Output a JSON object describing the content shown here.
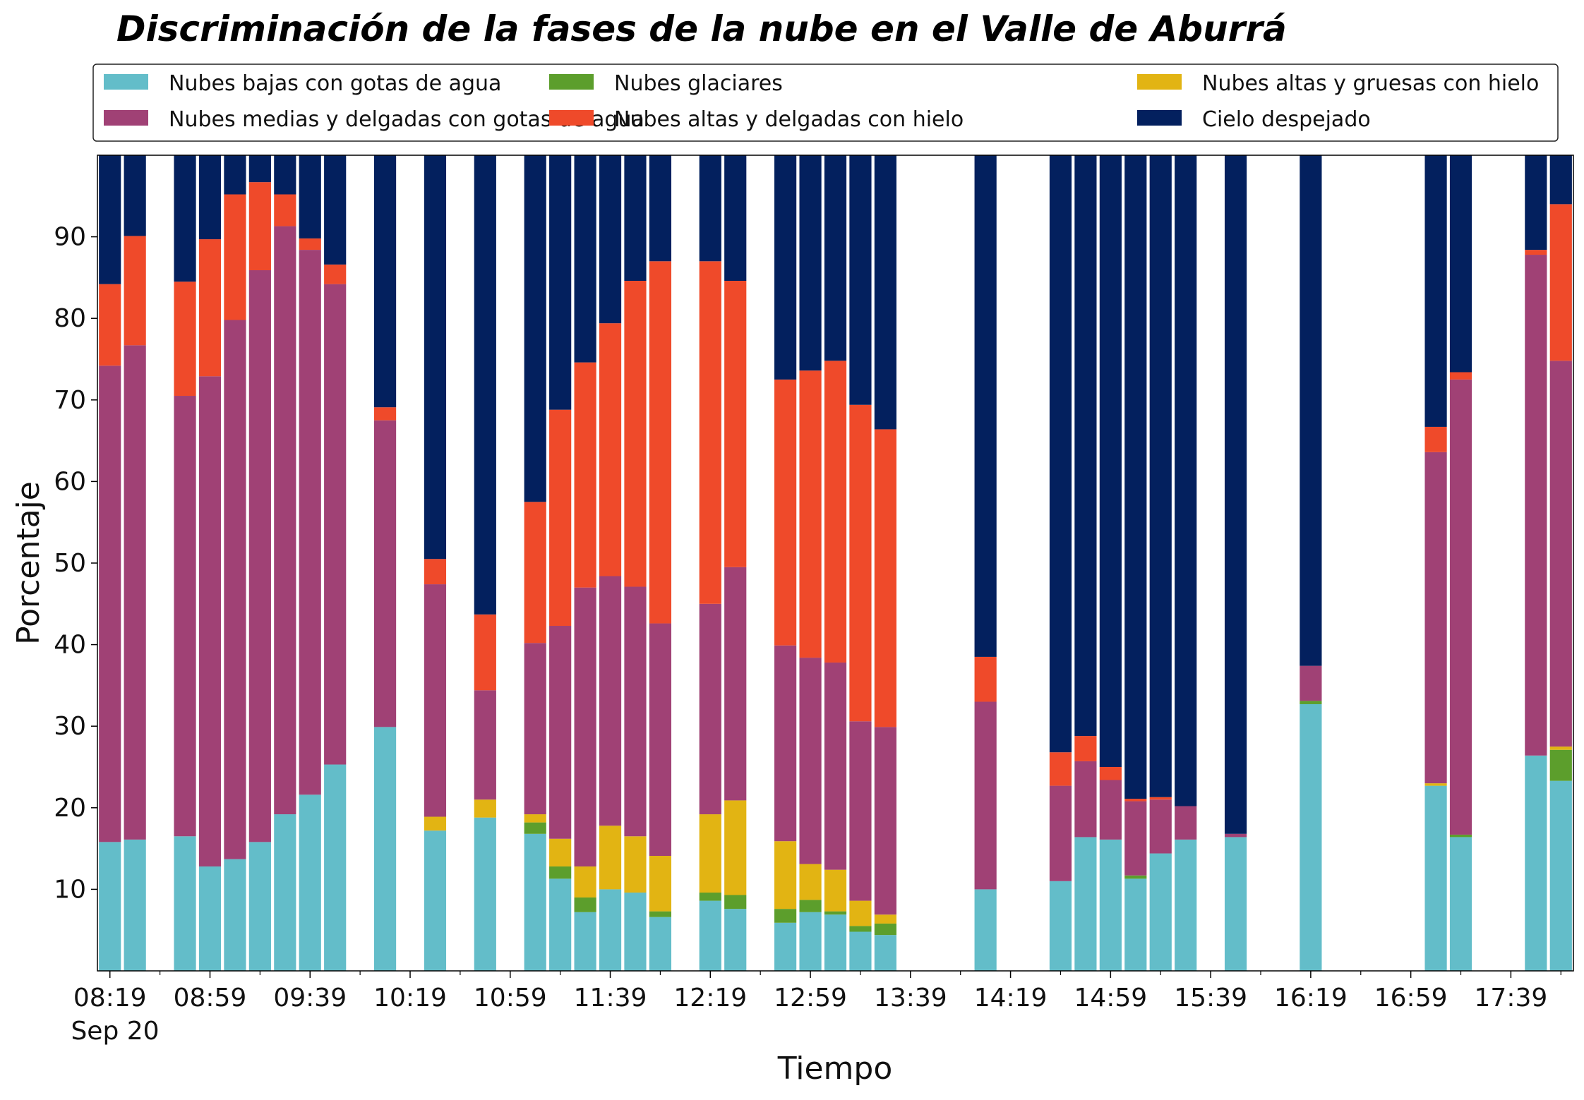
{
  "chart_data": {
    "type": "bar",
    "stacked": true,
    "title": "Discriminación de la fases de la nube en el Valle de Aburrá",
    "xlabel": "Tiempo",
    "ylabel": "Porcentaje",
    "ylim": [
      0,
      100
    ],
    "yticks": [
      10,
      20,
      30,
      40,
      50,
      60,
      70,
      80,
      90
    ],
    "xlim_minutes_after_0819": [
      -5,
      585
    ],
    "bar_interval_minutes": 10,
    "xticks": [
      {
        "label": "08:19",
        "offset": 0
      },
      {
        "label": "08:59",
        "offset": 40
      },
      {
        "label": "09:39",
        "offset": 80
      },
      {
        "label": "10:19",
        "offset": 120
      },
      {
        "label": "10:59",
        "offset": 160
      },
      {
        "label": "11:39",
        "offset": 200
      },
      {
        "label": "12:19",
        "offset": 240
      },
      {
        "label": "12:59",
        "offset": 280
      },
      {
        "label": "13:39",
        "offset": 320
      },
      {
        "label": "14:19",
        "offset": 360
      },
      {
        "label": "14:59",
        "offset": 400
      },
      {
        "label": "15:39",
        "offset": 440
      },
      {
        "label": "16:19",
        "offset": 480
      },
      {
        "label": "16:59",
        "offset": 520
      },
      {
        "label": "17:39",
        "offset": 560
      }
    ],
    "date_label": "Sep 20",
    "grid": false,
    "legend_position": "top",
    "series": [
      {
        "name": "Nubes bajas con gotas de agua",
        "color": "#63bdc9"
      },
      {
        "name": "Nubes glaciares",
        "color": "#5c9e2c"
      },
      {
        "name": "Nubes altas y gruesas con hielo",
        "color": "#e2b413"
      },
      {
        "name": "Nubes medias y delgadas con gotas de agua",
        "color": "#a04175"
      },
      {
        "name": "Nubes altas y delgadas con hielo",
        "color": "#ef4a2a"
      },
      {
        "name": "Cielo despejado",
        "color": "#03205e"
      }
    ],
    "bars": [
      {
        "time": "08:19",
        "values": [
          15.8,
          0,
          0,
          58.4,
          10.0,
          15.8
        ]
      },
      {
        "time": "08:29",
        "values": [
          16.1,
          0,
          0,
          60.6,
          13.4,
          9.9
        ]
      },
      {
        "time": "08:49",
        "values": [
          16.5,
          0,
          0,
          54.0,
          14.0,
          15.5
        ]
      },
      {
        "time": "08:59",
        "values": [
          12.8,
          0,
          0,
          60.1,
          16.8,
          10.3
        ]
      },
      {
        "time": "09:09",
        "values": [
          13.7,
          0,
          0,
          66.1,
          15.4,
          4.8
        ]
      },
      {
        "time": "09:19",
        "values": [
          15.8,
          0,
          0,
          70.1,
          10.8,
          3.3
        ]
      },
      {
        "time": "09:29",
        "values": [
          19.2,
          0,
          0,
          72.1,
          3.9,
          4.8
        ]
      },
      {
        "time": "09:39",
        "values": [
          21.6,
          0,
          0,
          66.8,
          1.4,
          10.2
        ]
      },
      {
        "time": "09:49",
        "values": [
          25.3,
          0,
          0,
          58.9,
          2.4,
          13.4
        ]
      },
      {
        "time": "10:09",
        "values": [
          29.9,
          0,
          0,
          37.6,
          1.6,
          30.9
        ]
      },
      {
        "time": "10:29",
        "values": [
          17.2,
          0,
          1.7,
          28.5,
          3.1,
          49.5
        ]
      },
      {
        "time": "10:49",
        "values": [
          18.8,
          0,
          2.2,
          13.4,
          9.3,
          56.3
        ]
      },
      {
        "time": "11:09",
        "values": [
          16.8,
          1.4,
          1.0,
          21.0,
          17.3,
          42.5
        ]
      },
      {
        "time": "11:19",
        "values": [
          11.3,
          1.5,
          3.4,
          26.1,
          26.5,
          31.2
        ]
      },
      {
        "time": "11:29",
        "values": [
          7.2,
          1.8,
          3.8,
          34.2,
          27.6,
          25.4
        ]
      },
      {
        "time": "11:39",
        "values": [
          10.0,
          0,
          7.8,
          30.6,
          31.0,
          20.6
        ]
      },
      {
        "time": "11:49",
        "values": [
          9.6,
          0,
          6.9,
          30.6,
          37.5,
          15.4
        ]
      },
      {
        "time": "11:59",
        "values": [
          6.6,
          0.7,
          6.8,
          28.5,
          44.4,
          13.0
        ]
      },
      {
        "time": "12:19",
        "values": [
          8.6,
          1.0,
          9.6,
          25.8,
          42.0,
          13.0
        ]
      },
      {
        "time": "12:29",
        "values": [
          7.6,
          1.7,
          11.6,
          28.6,
          35.1,
          15.4
        ]
      },
      {
        "time": "12:49",
        "values": [
          5.9,
          1.7,
          8.3,
          24.0,
          32.6,
          27.5
        ]
      },
      {
        "time": "12:59",
        "values": [
          7.2,
          1.5,
          4.4,
          25.3,
          35.2,
          26.4
        ]
      },
      {
        "time": "13:09",
        "values": [
          6.9,
          0.4,
          5.1,
          25.4,
          37.0,
          25.2
        ]
      },
      {
        "time": "13:19",
        "values": [
          4.8,
          0.7,
          3.1,
          22.0,
          38.8,
          30.6
        ]
      },
      {
        "time": "13:29",
        "values": [
          4.4,
          1.4,
          1.1,
          23.0,
          36.5,
          33.6
        ]
      },
      {
        "time": "14:09",
        "values": [
          10.0,
          0,
          0,
          23.0,
          5.5,
          61.5
        ]
      },
      {
        "time": "14:39",
        "values": [
          11.0,
          0,
          0,
          11.7,
          4.1,
          73.2
        ]
      },
      {
        "time": "14:49",
        "values": [
          16.4,
          0,
          0,
          9.3,
          3.1,
          71.2
        ]
      },
      {
        "time": "14:59",
        "values": [
          16.1,
          0,
          0,
          7.3,
          1.6,
          75.0
        ]
      },
      {
        "time": "15:09",
        "values": [
          11.3,
          0.4,
          0,
          9.1,
          0.3,
          78.9
        ]
      },
      {
        "time": "15:19",
        "values": [
          14.4,
          0,
          0,
          6.6,
          0.3,
          78.7
        ]
      },
      {
        "time": "15:29",
        "values": [
          16.1,
          0,
          0,
          4.1,
          0,
          79.8
        ]
      },
      {
        "time": "15:49",
        "values": [
          16.4,
          0,
          0,
          0.4,
          0,
          83.2
        ]
      },
      {
        "time": "16:19",
        "values": [
          32.7,
          0.4,
          0,
          4.3,
          0,
          62.6
        ]
      },
      {
        "time": "17:09",
        "values": [
          22.7,
          0,
          0.3,
          40.6,
          3.1,
          33.3
        ]
      },
      {
        "time": "17:19",
        "values": [
          16.4,
          0.3,
          0,
          55.8,
          0.9,
          26.6
        ]
      },
      {
        "time": "17:49",
        "values": [
          26.4,
          0,
          0,
          61.4,
          0.6,
          11.6
        ]
      },
      {
        "time": "17:59",
        "values": [
          23.3,
          3.8,
          0.4,
          47.3,
          19.2,
          6.0
        ]
      }
    ]
  }
}
